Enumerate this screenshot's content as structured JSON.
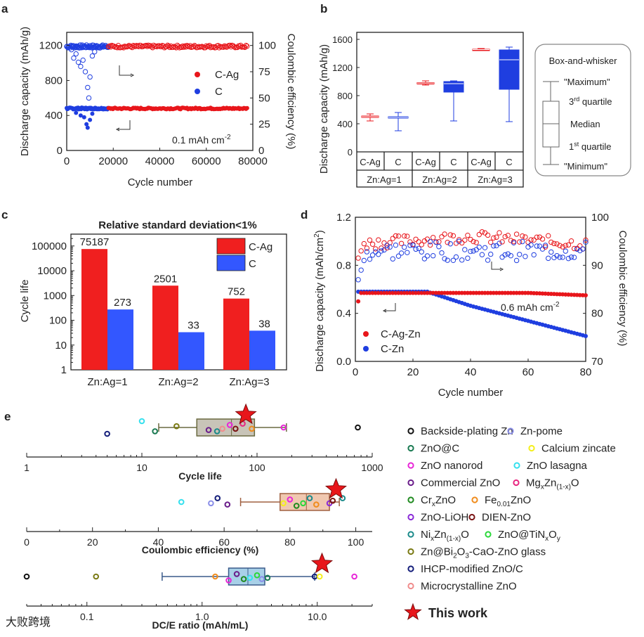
{
  "panel_labels": [
    "a",
    "b",
    "c",
    "d",
    "e"
  ],
  "watermark": "大败跨境",
  "chart_data": [
    {
      "panel": "a",
      "type": "scatter",
      "xlabel": "Cycle number",
      "ylabel": "Discharge capacity (mAh/g)",
      "y2label": "Coulombic efficiency (%)",
      "xlim": [
        0,
        80000
      ],
      "ylim": [
        0,
        1350
      ],
      "y2lim": [
        0,
        112.5
      ],
      "xticks": [
        "0",
        "20000",
        "40000",
        "60000",
        "80000"
      ],
      "yticks": [
        "0",
        "400",
        "800",
        "1200"
      ],
      "y2ticks": [
        "0",
        "25",
        "50",
        "75",
        "100"
      ],
      "annotation": "0.1 mAh cm",
      "annotation_sup": "-2",
      "legend": [
        "C-Ag",
        "C"
      ],
      "series": [
        {
          "name": "C-Ag",
          "color": "#e8161b",
          "x_range": [
            18000,
            78000
          ],
          "capacity": 480,
          "ce": 99
        },
        {
          "name": "C",
          "color": "#1f3ee0",
          "x_range": [
            0,
            18000
          ],
          "capacity": 480,
          "ce": 99
        }
      ]
    },
    {
      "panel": "b",
      "type": "box",
      "ylabel": "Discharge capacity (mAh/g)",
      "ylim": [
        0,
        1700
      ],
      "yticks": [
        "0",
        "400",
        "800",
        "1200",
        "1600"
      ],
      "row1": [
        "C-Ag",
        "C",
        "C-Ag",
        "C",
        "C-Ag",
        "C"
      ],
      "row2": [
        "Zn:Ag=1",
        "Zn:Ag=2",
        "Zn:Ag=3"
      ],
      "boxes": [
        {
          "label": "C-Ag",
          "color": "#e8161b",
          "min": 440,
          "q1": 495,
          "median": 500,
          "q3": 510,
          "max": 540
        },
        {
          "label": "C",
          "color": "#1f3ee0",
          "min": 300,
          "q1": 480,
          "median": 490,
          "q3": 500,
          "max": 560
        },
        {
          "label": "C-Ag",
          "color": "#e8161b",
          "min": 950,
          "q1": 970,
          "median": 978,
          "q3": 985,
          "max": 1010
        },
        {
          "label": "C",
          "color": "#1f3ee0",
          "min": 440,
          "q1": 850,
          "median": 970,
          "q3": 1000,
          "max": 1010
        },
        {
          "label": "C-Ag",
          "color": "#e8161b",
          "min": 1440,
          "q1": 1448,
          "median": 1455,
          "q3": 1460,
          "max": 1470
        },
        {
          "label": "C",
          "color": "#1f3ee0",
          "min": 430,
          "q1": 890,
          "median": 1310,
          "q3": 1450,
          "max": 1490
        }
      ],
      "legend_box": {
        "title": "Box-and-whisker",
        "maximum": "\"Maximum\"",
        "q3": "3",
        "q3_sup": "rd",
        "q3_text": " quartile",
        "median": "Median",
        "q1": "1",
        "q1_sup": "st",
        "q1_text": " quartile",
        "minimum": "\"Minimum\""
      }
    },
    {
      "panel": "c",
      "type": "bar",
      "title": "Relative standard deviation<1%",
      "ylabel": "Cycle life",
      "scale": "log",
      "ylim": [
        1,
        300000
      ],
      "yticks": [
        "1",
        "10",
        "100",
        "1000",
        "10000",
        "100000"
      ],
      "categories": [
        "Zn:Ag=1",
        "Zn:Ag=2",
        "Zn:Ag=3"
      ],
      "series": [
        {
          "name": "C-Ag",
          "color": "#f01f1f",
          "values": [
            75187,
            2501,
            752
          ],
          "labels": [
            "75187",
            "2501",
            "752"
          ]
        },
        {
          "name": "C",
          "color": "#3357ff",
          "values": [
            273,
            33,
            38
          ],
          "labels": [
            "273",
            "33",
            "38"
          ]
        }
      ]
    },
    {
      "panel": "d",
      "type": "scatter",
      "xlabel": "Cycle number",
      "ylabel": "Discharge capacity (mAh/cm",
      "ylabel_sup": "2",
      "ylabel_tail": ")",
      "y2label": "Coulombic efficiency (%)",
      "xlim": [
        0,
        80
      ],
      "ylim": [
        0,
        1.2
      ],
      "y2lim": [
        70,
        100
      ],
      "xticks": [
        "0",
        "20",
        "40",
        "60",
        "80"
      ],
      "yticks": [
        "0.0",
        "0.4",
        "0.8",
        "1.2"
      ],
      "y2ticks": [
        "70",
        "80",
        "90",
        "100"
      ],
      "annotation": "0.6 mAh cm",
      "annotation_sup": "-2",
      "legend": [
        "C-Ag-Zn",
        "C-Zn"
      ],
      "series": [
        {
          "name": "C-Ag-Zn",
          "color": "#e8161b",
          "capacity": 0.57
        },
        {
          "name": "C-Zn",
          "color": "#1f3ee0",
          "capacity_end": 0.15
        }
      ]
    },
    {
      "panel": "e",
      "type": "scatter",
      "subplots": [
        {
          "xlabel": "Cycle life",
          "scale": "log",
          "xlim": [
            1,
            1000
          ],
          "xticks": [
            "1",
            "10",
            "100",
            "1000"
          ]
        },
        {
          "xlabel": "Coulombic efficiency (%)",
          "scale": "linear",
          "xlim": [
            0,
            105
          ],
          "xticks": [
            "0",
            "20",
            "40",
            "60",
            "80",
            "100"
          ]
        },
        {
          "xlabel": "DC/E ratio (mAh/mL)",
          "scale": "log",
          "xlim": [
            0.03,
            30
          ],
          "xticks": [
            "0.1",
            "1.0",
            "10.0"
          ]
        }
      ],
      "legend": [
        {
          "name": "Backside-plating Zn",
          "color": "#111111"
        },
        {
          "name": "Zn-pome",
          "color": "#8a8ee8"
        },
        {
          "name": "ZnO@C",
          "color": "#1a7a52"
        },
        {
          "name": "Calcium zincate",
          "color": "#f4ef1c"
        },
        {
          "name": "ZnO nanorod",
          "color": "#e826d8"
        },
        {
          "name": "ZnO lasagna",
          "color": "#35e0ee"
        },
        {
          "name": "Commercial ZnO",
          "color": "#6a1d8a"
        },
        {
          "name": "Mg",
          "sub1": "x",
          "mid": "Zn",
          "sub2": "(1-x)",
          "tail": "O",
          "color": "#e82680"
        },
        {
          "name": "Cr",
          "sub1": "x",
          "tail": "ZnO",
          "color": "#1f8a1f"
        },
        {
          "name": "Fe",
          "sub1": "0.01",
          "tail": "ZnO",
          "color": "#f08c1c"
        },
        {
          "name": "ZnO-LiOH",
          "color": "#8a2ad8"
        },
        {
          "name": "DIEN-ZnO",
          "color": "#7a1414"
        },
        {
          "name": "Ni",
          "sub1": "x",
          "mid": "Zn",
          "sub2": "(1-x)",
          "tail": "O",
          "color": "#1a8a8a"
        },
        {
          "name": "ZnO@TiN",
          "sub1": "x",
          "mid": "O",
          "sub2": "y",
          "tail": "",
          "color": "#2ad83a"
        },
        {
          "name": "Zn@Bi",
          "sub1": "2",
          "mid": "O",
          "sub2": "3",
          "tail": "-CaO-ZnO glass",
          "color": "#7a7a14"
        },
        {
          "name": "IHCP-modified ZnO/C",
          "color": "#141e7a"
        },
        {
          "name": "Microcrystalline ZnO",
          "color": "#f08c8c"
        },
        {
          "name": "This work",
          "color": "#e8161b"
        }
      ]
    }
  ]
}
